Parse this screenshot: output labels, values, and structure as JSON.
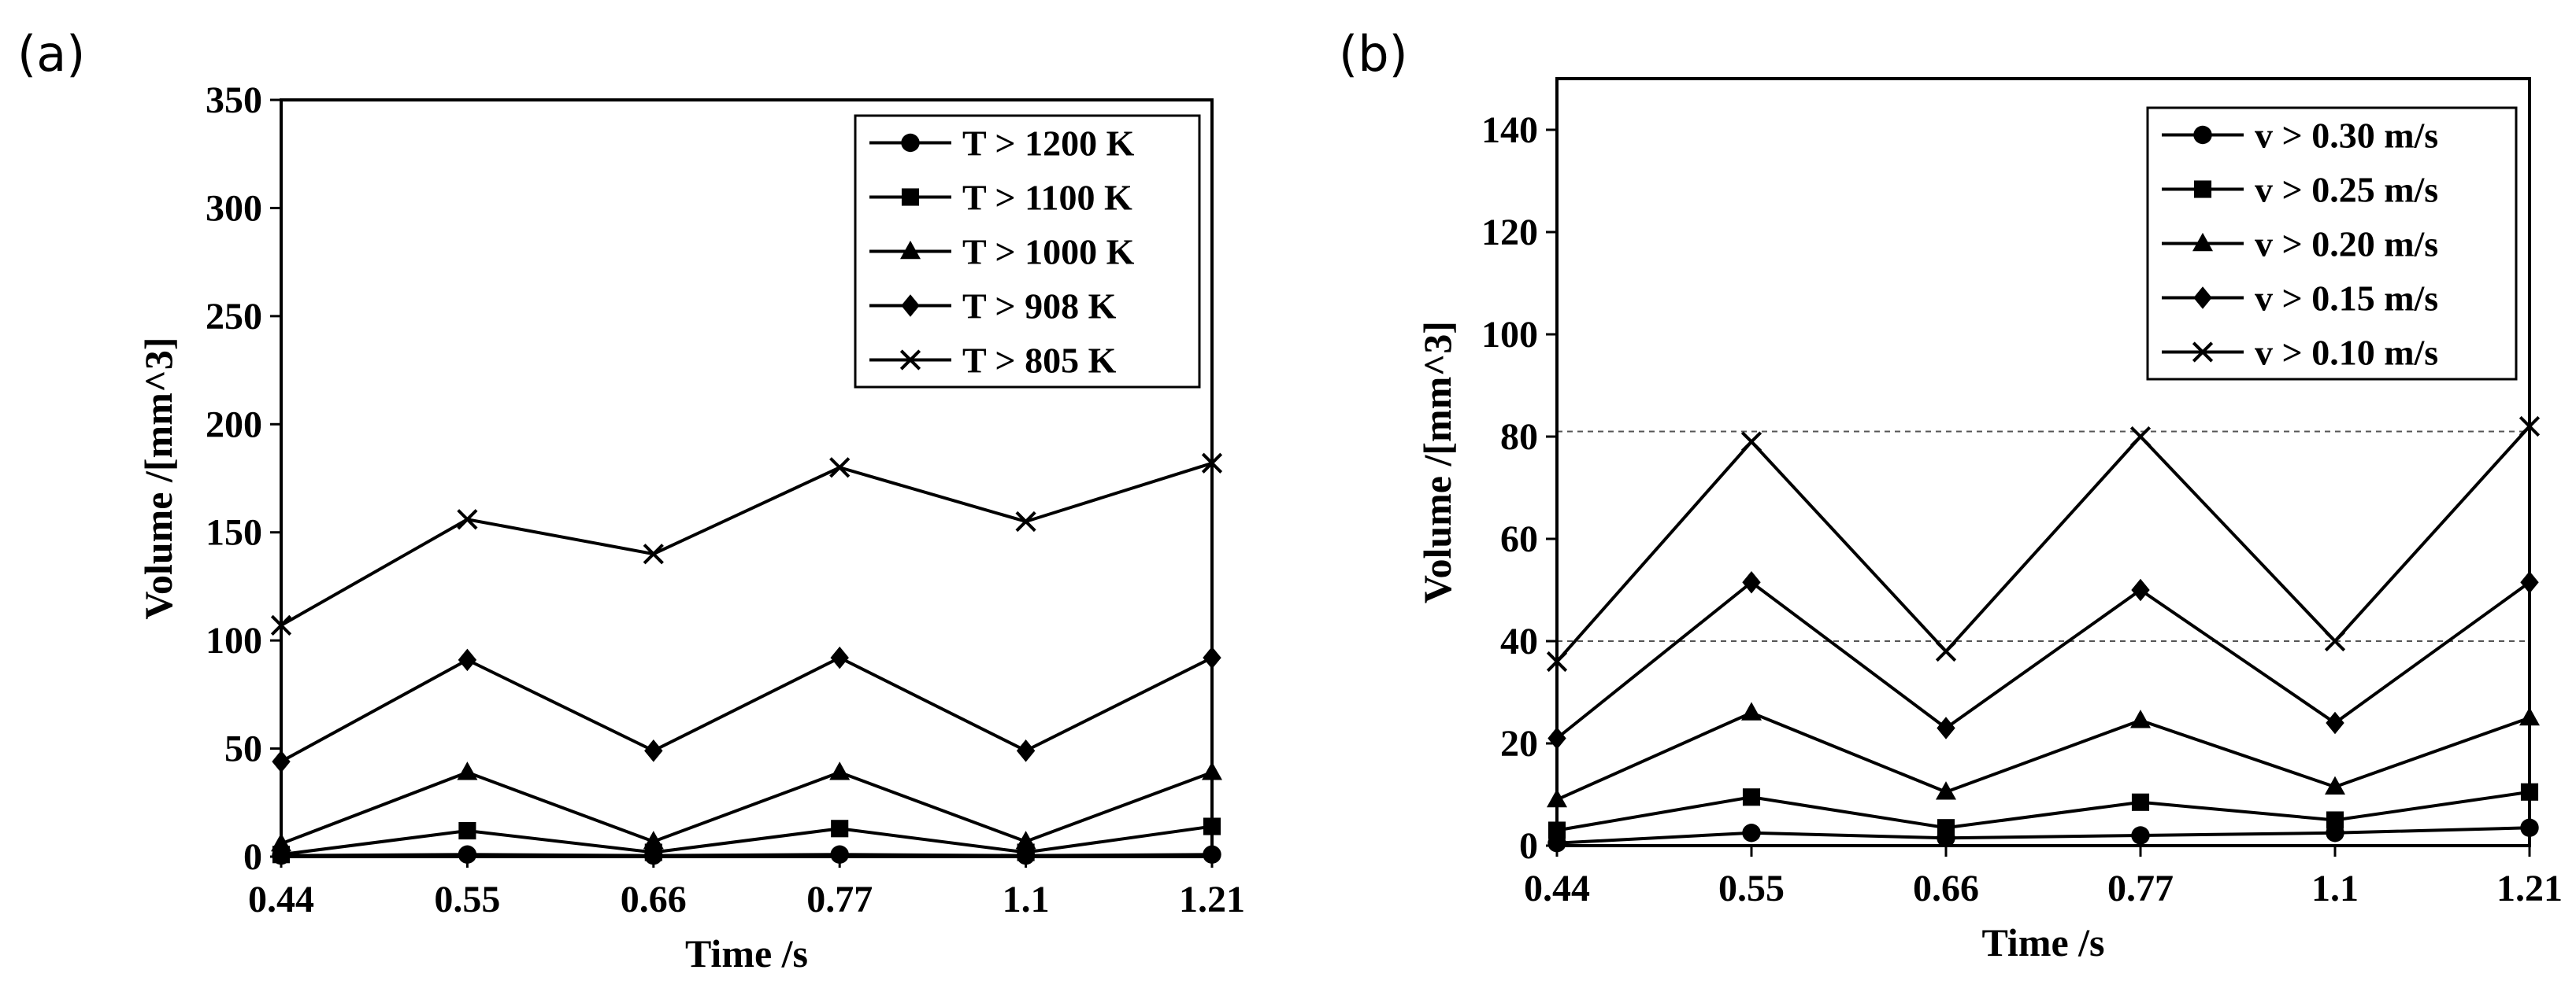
{
  "chart_data": [
    {
      "panel_label": "(a)",
      "type": "line",
      "categories": [
        "0.44",
        "0.55",
        "0.66",
        "0.77",
        "1.1",
        "1.21"
      ],
      "xlabel": "Time /s",
      "ylabel": "Volume /[mm^3]",
      "ylim": [
        0,
        350
      ],
      "yticks": [
        "0",
        "50",
        "100",
        "150",
        "200",
        "250",
        "300",
        "350"
      ],
      "grid": false,
      "legend_position": "top-right",
      "series": [
        {
          "name": "T > 1200 K",
          "marker": "circle",
          "values": [
            0.5,
            1,
            0.5,
            1,
            0.5,
            1
          ]
        },
        {
          "name": "T > 1100 K",
          "marker": "square",
          "values": [
            1,
            12,
            2,
            13,
            2,
            14
          ]
        },
        {
          "name": "T > 1000 K",
          "marker": "triangle",
          "values": [
            6,
            39,
            7,
            39,
            7,
            39
          ]
        },
        {
          "name": "T > 908 K",
          "marker": "diamond",
          "values": [
            44,
            91,
            49,
            92,
            49,
            92
          ]
        },
        {
          "name": "T > 805 K",
          "marker": "cross",
          "values": [
            107,
            156,
            140,
            180,
            155,
            182
          ]
        }
      ],
      "reference_lines": []
    },
    {
      "panel_label": "(b)",
      "type": "line",
      "categories": [
        "0.44",
        "0.55",
        "0.66",
        "0.77",
        "1.1",
        "1.21"
      ],
      "xlabel": "Time /s",
      "ylabel": "Volume /[mm^3]",
      "ylim": [
        0,
        150
      ],
      "yticks": [
        "0",
        "20",
        "40",
        "60",
        "80",
        "100",
        "120",
        "140"
      ],
      "grid": false,
      "legend_position": "top-right",
      "series": [
        {
          "name": "v > 0.30 m/s",
          "marker": "circle",
          "values": [
            0.5,
            2.5,
            1.5,
            2,
            2.5,
            3.5
          ]
        },
        {
          "name": "v > 0.25 m/s",
          "marker": "square",
          "values": [
            3,
            9.5,
            3.5,
            8.5,
            5,
            10.5
          ]
        },
        {
          "name": "v > 0.20 m/s",
          "marker": "triangle",
          "values": [
            9,
            26,
            10.5,
            24.5,
            11.5,
            25
          ]
        },
        {
          "name": "v > 0.15 m/s",
          "marker": "diamond",
          "values": [
            21,
            51.5,
            23,
            50,
            24,
            51.5
          ]
        },
        {
          "name": "v > 0.10 m/s",
          "marker": "cross",
          "values": [
            36,
            79,
            38,
            80,
            40,
            82
          ]
        }
      ],
      "reference_lines": [
        40,
        81
      ]
    }
  ]
}
